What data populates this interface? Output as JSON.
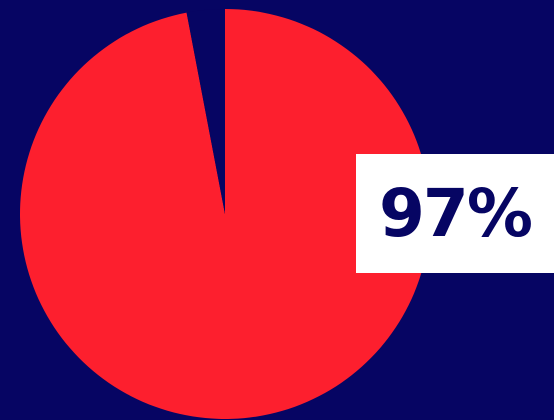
{
  "colors": {
    "background": "#060563",
    "slice_main": "#fd1f2e",
    "label_box": "#ffffff",
    "label_text": "#060563"
  },
  "chart_data": {
    "type": "pie",
    "slices": [
      {
        "label": "",
        "value": 97,
        "color": "#fd1f2e"
      },
      {
        "label": "",
        "value": 3,
        "color": "#060563"
      }
    ],
    "data_label": "97%"
  }
}
